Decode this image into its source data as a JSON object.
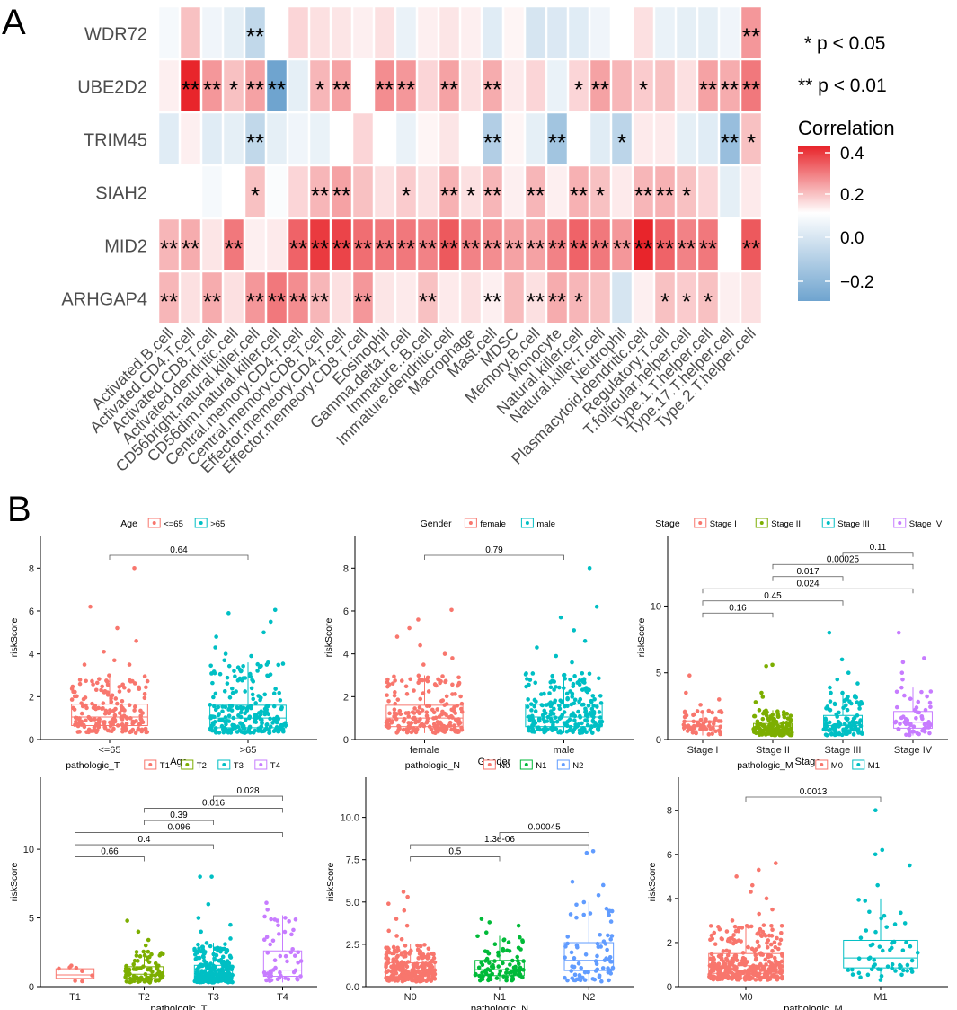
{
  "panel_labels": {
    "a": "A",
    "b": "B"
  },
  "legend": {
    "sig1": "* p < 0.05",
    "sig2": "** p < 0.01",
    "title": "Correlation",
    "ticks": [
      "0.4",
      "0.2",
      "0.0",
      "−0.2"
    ],
    "colors": {
      "high": "#e8252b",
      "mid": "#ffffff",
      "low": "#6fa4cf"
    }
  },
  "chart_data": [
    {
      "type": "heatmap",
      "title": "",
      "rows": [
        "WDR72",
        "UBE2D2",
        "TRIM45",
        "SIAH2",
        "MID2",
        "ARHGAP4"
      ],
      "columns": [
        "Activated.B.cell",
        "Activated.CD4.T.cell",
        "Activated.CD8.T.cell",
        "Activated.dendritic.cell",
        "CD56bright.natural.killer.cell",
        "CD56dim.natural.killer.cell",
        "Central.memory.CD4.T.cell",
        "Central.memory.CD8.T.cell",
        "Effector.memeory.CD4.T.cell",
        "Effector.memeory.CD8.T.cell",
        "Eosinophil",
        "Gamma.delta.T.cell",
        "Immature..B.cell",
        "Immature.dendritic.cell",
        "Macrophage",
        "Mast.cell",
        "MDSC",
        "Memory.B.cell",
        "Monocyte",
        "Natural.killer.cell",
        "Natural.killer.T.cell",
        "Neutrophil",
        "Plasmacytoid.dendritic.cell",
        "Regulatory.T.cell",
        "T.follicular.helper.cell",
        "Type.1.T.helper.cell",
        "Type.17.T.helper.cell",
        "Type.2.T.helper.cell"
      ],
      "values": [
        [
          -0.02,
          0.12,
          -0.03,
          -0.05,
          -0.12,
          0.0,
          0.08,
          0.06,
          0.05,
          0.03,
          0.06,
          -0.04,
          0.03,
          0.05,
          0.03,
          -0.06,
          0.02,
          -0.08,
          -0.07,
          -0.06,
          -0.03,
          0.0,
          0.06,
          -0.04,
          -0.05,
          -0.05,
          -0.03,
          0.2
        ],
        [
          0.03,
          0.42,
          0.2,
          0.12,
          0.18,
          -0.28,
          -0.05,
          0.14,
          0.18,
          0.0,
          0.22,
          0.2,
          0.08,
          0.18,
          0.06,
          0.16,
          0.04,
          0.08,
          -0.04,
          0.08,
          0.18,
          0.14,
          0.1,
          0.12,
          0.06,
          0.18,
          0.16,
          0.26
        ],
        [
          -0.06,
          0.03,
          -0.06,
          -0.05,
          -0.12,
          -0.05,
          -0.03,
          -0.04,
          0.0,
          0.08,
          0.0,
          -0.04,
          0.02,
          0.05,
          0.0,
          -0.15,
          0.02,
          -0.05,
          -0.18,
          0.0,
          -0.06,
          -0.13,
          0.04,
          0.04,
          -0.05,
          -0.06,
          -0.2,
          0.12
        ],
        [
          0.0,
          0.0,
          -0.02,
          0.0,
          0.12,
          -0.01,
          0.08,
          0.14,
          0.18,
          0.12,
          0.06,
          0.1,
          0.06,
          0.15,
          0.06,
          0.14,
          0.03,
          0.14,
          0.03,
          0.15,
          0.12,
          0.04,
          0.14,
          0.15,
          0.12,
          0.08,
          -0.05,
          0.04
        ],
        [
          0.14,
          0.16,
          0.05,
          0.26,
          0.03,
          0.04,
          0.3,
          0.38,
          0.36,
          0.28,
          0.26,
          0.26,
          0.24,
          0.32,
          0.24,
          0.22,
          0.18,
          0.18,
          0.24,
          0.3,
          0.26,
          0.2,
          0.42,
          0.3,
          0.24,
          0.26,
          0.0,
          0.32
        ],
        [
          0.14,
          0.06,
          0.16,
          0.06,
          0.2,
          0.26,
          0.22,
          0.14,
          0.06,
          0.2,
          0.05,
          0.04,
          0.12,
          0.04,
          0.06,
          0.03,
          0.13,
          0.06,
          0.16,
          0.14,
          0.12,
          -0.08,
          0.03,
          0.12,
          0.1,
          0.12,
          0.03,
          0.06
        ]
      ],
      "significance": [
        [
          "",
          "",
          "",
          "",
          "**",
          "",
          "",
          "",
          "",
          "",
          "",
          "",
          "",
          "",
          "",
          "",
          "",
          "",
          "",
          "",
          "",
          "",
          "",
          "",
          "",
          "",
          "",
          "**"
        ],
        [
          "",
          "**",
          "**",
          "*",
          "**",
          "**",
          "",
          "*",
          "**",
          "",
          "**",
          "**",
          "",
          "**",
          "",
          "**",
          "",
          "",
          "",
          "*",
          "**",
          "",
          "*",
          "",
          "",
          "**",
          "**",
          "**"
        ],
        [
          "",
          "",
          "",
          "",
          "**",
          "",
          "",
          "",
          "",
          "",
          "",
          "",
          "",
          "",
          "",
          "**",
          "",
          "",
          "**",
          "",
          "",
          "*",
          "",
          "",
          "",
          "",
          "**",
          "*"
        ],
        [
          "",
          "",
          "",
          "",
          "*",
          "",
          "",
          "**",
          "**",
          "",
          "",
          "*",
          "",
          "**",
          "*",
          "**",
          "",
          "**",
          "",
          "**",
          "*",
          "",
          "**",
          "**",
          "*",
          "",
          "",
          ""
        ],
        [
          "**",
          "**",
          "",
          "**",
          "",
          "",
          "**",
          "**",
          "**",
          "**",
          "**",
          "**",
          "**",
          "**",
          "**",
          "**",
          "**",
          "**",
          "**",
          "**",
          "**",
          "**",
          "**",
          "**",
          "**",
          "**",
          "",
          "**"
        ],
        [
          "**",
          "",
          "**",
          "",
          "**",
          "**",
          "**",
          "**",
          "",
          "**",
          "",
          "",
          "**",
          "",
          "",
          "**",
          "",
          "**",
          "**",
          "*",
          "",
          "",
          "",
          "*",
          "*",
          "*",
          "",
          ""
        ]
      ],
      "range": [
        -0.3,
        0.45
      ]
    },
    {
      "type": "box",
      "xlabel": "Age",
      "ylabel": "riskScore",
      "legend_title": "Age",
      "groups": [
        "<=65",
        ">65"
      ],
      "colors": [
        "#f8766d",
        "#00bfc4"
      ],
      "ylim": [
        0,
        8.6
      ],
      "yticks": [
        0,
        2,
        4,
        6,
        8
      ],
      "stats": [
        [
          0.3,
          0.65,
          1.05,
          1.65,
          3.0
        ],
        [
          0.3,
          0.55,
          1.0,
          1.6,
          3.6
        ]
      ],
      "n": [
        180,
        230
      ],
      "outliers": [
        [
          3.5,
          3.5,
          3.7,
          4.1,
          4.6,
          5.2,
          6.2,
          8.0
        ],
        [
          3.7,
          3.9,
          4.0,
          4.3,
          4.8,
          5.0,
          5.5,
          5.9,
          6.05
        ]
      ],
      "comparisons": [
        {
          "pair": [
            0,
            1
          ],
          "p": "0.64"
        }
      ]
    },
    {
      "type": "box",
      "xlabel": "Gender",
      "ylabel": "riskScore",
      "legend_title": "Gender",
      "groups": [
        "female",
        "male"
      ],
      "colors": [
        "#f8766d",
        "#00bfc4"
      ],
      "ylim": [
        0,
        8.6
      ],
      "yticks": [
        0,
        2,
        4,
        6,
        8
      ],
      "stats": [
        [
          0.3,
          0.6,
          1.0,
          1.6,
          3.0
        ],
        [
          0.3,
          0.6,
          1.05,
          1.65,
          3.1
        ]
      ],
      "n": [
        200,
        230
      ],
      "outliers": [
        [
          3.5,
          3.8,
          4.0,
          4.4,
          4.8,
          5.2,
          5.6,
          6.05
        ],
        [
          3.6,
          3.9,
          4.3,
          4.6,
          5.1,
          5.7,
          6.2,
          8.0
        ]
      ],
      "comparisons": [
        {
          "pair": [
            0,
            1
          ],
          "p": "0.79"
        }
      ]
    },
    {
      "type": "box",
      "xlabel": "Stage",
      "ylabel": "riskScore",
      "legend_title": "Stage",
      "groups": [
        "Stage I",
        "Stage II",
        "Stage III",
        "Stage IV"
      ],
      "colors": [
        "#f8766d",
        "#7cae00",
        "#00bfc4",
        "#c77cff"
      ],
      "ylim": [
        0,
        13.8
      ],
      "yticks": [
        0,
        5,
        10
      ],
      "stats": [
        [
          0.3,
          0.65,
          1.0,
          1.4,
          2.2
        ],
        [
          0.3,
          0.55,
          0.8,
          1.2,
          2.2
        ],
        [
          0.3,
          0.65,
          1.05,
          1.8,
          3.5
        ],
        [
          0.3,
          0.85,
          1.3,
          2.1,
          3.9
        ]
      ],
      "n": [
        60,
        150,
        110,
        60
      ],
      "outliers": [
        [
          2.6,
          3.0,
          3.5,
          4.8
        ],
        [
          2.8,
          3.2,
          3.5,
          5.5,
          5.6
        ],
        [
          3.9,
          4.2,
          4.5,
          5.0,
          6.0,
          8.0
        ],
        [
          4.5,
          5.0,
          5.8,
          6.1,
          8.0
        ]
      ],
      "comparisons": [
        {
          "pair": [
            2,
            3
          ],
          "p": "0.11"
        },
        {
          "pair": [
            1,
            3
          ],
          "p": "0.00025"
        },
        {
          "pair": [
            1,
            2
          ],
          "p": "0.017"
        },
        {
          "pair": [
            0,
            3
          ],
          "p": "0.024"
        },
        {
          "pair": [
            0,
            2
          ],
          "p": "0.45"
        },
        {
          "pair": [
            0,
            1
          ],
          "p": "0.16"
        }
      ]
    },
    {
      "type": "box",
      "xlabel": "pathologic_T",
      "ylabel": "riskScore",
      "legend_title": "pathologic_T",
      "groups": [
        "T1",
        "T2",
        "T3",
        "T4"
      ],
      "colors": [
        "#f8766d",
        "#7cae00",
        "#00bfc4",
        "#c77cff"
      ],
      "ylim": [
        0,
        13.8
      ],
      "yticks": [
        0,
        5,
        10
      ],
      "stats": [
        [
          0.3,
          0.6,
          0.85,
          1.3,
          1.6
        ],
        [
          0.3,
          0.6,
          0.9,
          1.45,
          2.6
        ],
        [
          0.3,
          0.55,
          0.95,
          1.55,
          3.2
        ],
        [
          0.3,
          0.75,
          1.2,
          2.6,
          5.2
        ]
      ],
      "n": [
        8,
        90,
        240,
        50
      ],
      "outliers": [
        [],
        [
          3.0,
          3.4,
          4.0,
          4.8
        ],
        [
          3.5,
          4.0,
          4.5,
          5.0,
          6.0,
          8.0,
          8.0
        ],
        [
          5.6,
          6.1
        ]
      ],
      "comparisons": [
        {
          "pair": [
            2,
            3
          ],
          "p": "0.028"
        },
        {
          "pair": [
            1,
            3
          ],
          "p": "0.016"
        },
        {
          "pair": [
            1,
            2
          ],
          "p": "0.39"
        },
        {
          "pair": [
            0,
            3
          ],
          "p": "0.096"
        },
        {
          "pair": [
            0,
            2
          ],
          "p": "0.4"
        },
        {
          "pair": [
            0,
            1
          ],
          "p": "0.66"
        }
      ]
    },
    {
      "type": "box",
      "xlabel": "pathologic_N",
      "ylabel": "riskScore",
      "legend_title": "pathologic_N",
      "groups": [
        "N0",
        "N1",
        "N2"
      ],
      "colors": [
        "#f8766d",
        "#00ba38",
        "#619cff"
      ],
      "ylim": [
        0,
        11.2
      ],
      "yticks": [
        "0.0",
        "2.5",
        "5.0",
        "7.5",
        "10.0"
      ],
      "stats": [
        [
          0.3,
          0.6,
          0.95,
          1.4,
          2.5
        ],
        [
          0.3,
          0.65,
          1.0,
          1.55,
          3.0
        ],
        [
          0.3,
          0.95,
          1.55,
          2.6,
          5.0
        ]
      ],
      "n": [
        260,
        90,
        75
      ],
      "outliers": [
        [
          2.8,
          3.0,
          3.3,
          3.6,
          4.0,
          4.5,
          4.9,
          5.3,
          5.6
        ],
        [
          3.2,
          3.6,
          3.8,
          4.0
        ],
        [
          5.4,
          6.0,
          6.2,
          7.9,
          8.0
        ]
      ],
      "comparisons": [
        {
          "pair": [
            1,
            2
          ],
          "p": "0.00045"
        },
        {
          "pair": [
            0,
            2
          ],
          "p": "1.3e-06"
        },
        {
          "pair": [
            0,
            1
          ],
          "p": "0.5"
        }
      ]
    },
    {
      "type": "box",
      "xlabel": "pathologic_M",
      "ylabel": "riskScore",
      "legend_title": "pathologic_M",
      "groups": [
        "M0",
        "M1"
      ],
      "colors": [
        "#f8766d",
        "#00bfc4"
      ],
      "ylim": [
        0,
        8.6
      ],
      "yticks": [
        0,
        2,
        4,
        6,
        8
      ],
      "stats": [
        [
          0.3,
          0.6,
          0.95,
          1.5,
          2.8
        ],
        [
          0.3,
          0.85,
          1.3,
          2.1,
          4.0
        ]
      ],
      "n": [
        340,
        55
      ],
      "outliers": [
        [
          3.0,
          3.3,
          3.5,
          4.0,
          4.3,
          4.6,
          5.0,
          5.3,
          5.6
        ],
        [
          4.6,
          5.5,
          6.0,
          6.2,
          8.0
        ]
      ],
      "comparisons": [
        {
          "pair": [
            0,
            1
          ],
          "p": "0.0013"
        }
      ]
    }
  ]
}
